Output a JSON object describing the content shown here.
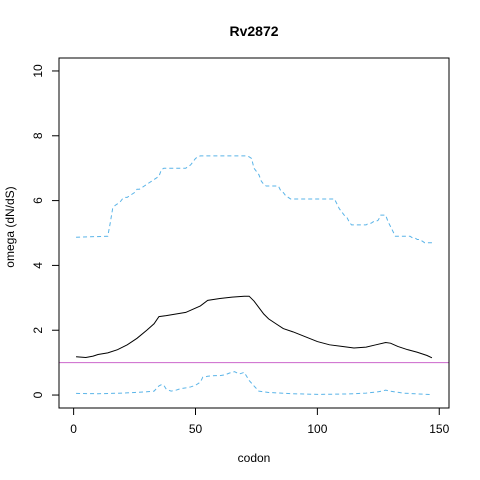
{
  "chart_data": {
    "type": "line",
    "title": "Rv2872",
    "xlabel": "codon",
    "ylabel": "omega (dN/dS)",
    "xlim": [
      -6,
      154
    ],
    "ylim": [
      -0.4,
      10.4
    ],
    "xticks": [
      0,
      50,
      100,
      150
    ],
    "yticks": [
      0,
      2,
      4,
      6,
      8,
      10
    ],
    "grid": false,
    "reference_line": {
      "y": 1,
      "color": "#cc66cc"
    },
    "series": [
      {
        "style": "dashed",
        "color": "#5ab4e8",
        "x": [
          1,
          14,
          15,
          16,
          17,
          18,
          19,
          20,
          21,
          22,
          23,
          24,
          25,
          26,
          27,
          28,
          29,
          30,
          31,
          32,
          33,
          34,
          35,
          36,
          37,
          46,
          47,
          48,
          49,
          50,
          51,
          52,
          53,
          71,
          72,
          73,
          74,
          75,
          76,
          77,
          78,
          79,
          84,
          85,
          86,
          87,
          88,
          89,
          90,
          91,
          92,
          93,
          94,
          95,
          96,
          97,
          98,
          99,
          100,
          101,
          102,
          103,
          104,
          105,
          106,
          107,
          108,
          109,
          110,
          111,
          112,
          113,
          114,
          115,
          116,
          117,
          118,
          119,
          120,
          121,
          122,
          123,
          124,
          125,
          126,
          127,
          128,
          129,
          130,
          131,
          132,
          133,
          134,
          135,
          136,
          137,
          138,
          139,
          140,
          141,
          142,
          143,
          144,
          145,
          146,
          147
        ],
        "y": [
          4.87,
          4.9,
          5.3,
          5.75,
          5.85,
          5.9,
          5.95,
          6.05,
          6.1,
          6.1,
          6.15,
          6.2,
          6.25,
          6.35,
          6.35,
          6.4,
          6.45,
          6.5,
          6.55,
          6.6,
          6.65,
          6.7,
          6.75,
          6.95,
          7.0,
          7.0,
          7.05,
          7.1,
          7.2,
          7.3,
          7.35,
          7.38,
          7.38,
          7.38,
          7.35,
          7.3,
          7.0,
          6.9,
          6.8,
          6.6,
          6.5,
          6.45,
          6.45,
          6.3,
          6.25,
          6.15,
          6.1,
          6.05,
          6.05,
          6.05,
          6.05,
          6.05,
          6.05,
          6.05,
          6.05,
          6.05,
          6.05,
          6.05,
          6.05,
          6.05,
          6.05,
          6.05,
          6.05,
          6.05,
          6.05,
          6.05,
          5.9,
          5.75,
          5.65,
          5.55,
          5.5,
          5.35,
          5.25,
          5.25,
          5.25,
          5.25,
          5.25,
          5.25,
          5.25,
          5.3,
          5.3,
          5.35,
          5.35,
          5.4,
          5.55,
          5.55,
          5.55,
          5.35,
          5.2,
          5.05,
          4.9,
          4.9,
          4.9,
          4.9,
          4.9,
          4.9,
          4.9,
          4.85,
          4.85,
          4.8,
          4.8,
          4.75,
          4.7,
          4.7,
          4.7,
          4.7
        ]
      },
      {
        "style": "solid",
        "color": "#000000",
        "x": [
          1,
          5,
          8,
          10,
          14,
          18,
          22,
          26,
          30,
          33,
          35,
          38,
          42,
          46,
          49,
          52,
          55,
          60,
          65,
          70,
          72,
          74,
          76,
          78,
          80,
          83,
          86,
          90,
          95,
          100,
          105,
          110,
          115,
          120,
          124,
          128,
          130,
          133,
          137,
          141,
          145,
          147
        ],
        "y": [
          1.18,
          1.16,
          1.2,
          1.25,
          1.3,
          1.4,
          1.55,
          1.75,
          2.0,
          2.2,
          2.42,
          2.45,
          2.5,
          2.55,
          2.65,
          2.75,
          2.92,
          2.98,
          3.02,
          3.05,
          3.05,
          2.9,
          2.7,
          2.5,
          2.35,
          2.2,
          2.05,
          1.95,
          1.8,
          1.65,
          1.55,
          1.5,
          1.45,
          1.48,
          1.55,
          1.62,
          1.6,
          1.5,
          1.4,
          1.32,
          1.22,
          1.15
        ]
      },
      {
        "style": "dashed",
        "color": "#5ab4e8",
        "x": [
          1,
          10,
          20,
          25,
          30,
          33,
          35,
          36,
          37,
          38,
          40,
          42,
          44,
          46,
          48,
          50,
          52,
          53,
          55,
          58,
          60,
          62,
          64,
          66,
          68,
          70,
          72,
          74,
          76,
          80,
          90,
          100,
          110,
          115,
          120,
          125,
          128,
          130,
          135,
          140,
          145,
          147
        ],
        "y": [
          0.05,
          0.04,
          0.06,
          0.08,
          0.1,
          0.12,
          0.28,
          0.32,
          0.3,
          0.18,
          0.12,
          0.15,
          0.2,
          0.22,
          0.25,
          0.3,
          0.4,
          0.55,
          0.58,
          0.6,
          0.6,
          0.62,
          0.68,
          0.72,
          0.65,
          0.7,
          0.45,
          0.28,
          0.12,
          0.08,
          0.04,
          0.02,
          0.03,
          0.04,
          0.06,
          0.1,
          0.15,
          0.12,
          0.06,
          0.04,
          0.02,
          0.01
        ]
      }
    ]
  }
}
